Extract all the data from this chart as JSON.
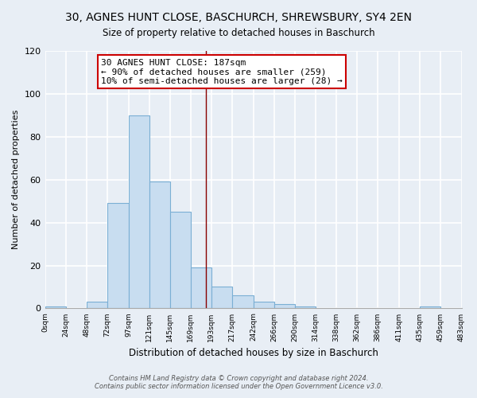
{
  "title": "30, AGNES HUNT CLOSE, BASCHURCH, SHREWSBURY, SY4 2EN",
  "subtitle": "Size of property relative to detached houses in Baschurch",
  "xlabel": "Distribution of detached houses by size in Baschurch",
  "ylabel": "Number of detached properties",
  "bar_color": "#c8ddf0",
  "bar_edge_color": "#7bafd4",
  "bin_edges": [
    0,
    24,
    48,
    72,
    97,
    121,
    145,
    169,
    193,
    217,
    242,
    266,
    290,
    314,
    338,
    362,
    386,
    411,
    435,
    459,
    483
  ],
  "counts": [
    1,
    0,
    3,
    49,
    90,
    59,
    45,
    19,
    10,
    6,
    3,
    2,
    1,
    0,
    0,
    0,
    0,
    0,
    1,
    0
  ],
  "tick_labels": [
    "0sqm",
    "24sqm",
    "48sqm",
    "72sqm",
    "97sqm",
    "121sqm",
    "145sqm",
    "169sqm",
    "193sqm",
    "217sqm",
    "242sqm",
    "266sqm",
    "290sqm",
    "314sqm",
    "338sqm",
    "362sqm",
    "386sqm",
    "411sqm",
    "435sqm",
    "459sqm",
    "483sqm"
  ],
  "property_line_x": 187,
  "property_line_color": "#880000",
  "annotation_text": "30 AGNES HUNT CLOSE: 187sqm\n← 90% of detached houses are smaller (259)\n10% of semi-detached houses are larger (28) →",
  "annotation_box_color": "#ffffff",
  "annotation_box_edgecolor": "#cc0000",
  "ylim": [
    0,
    120
  ],
  "yticks": [
    0,
    20,
    40,
    60,
    80,
    100,
    120
  ],
  "footnote1": "Contains HM Land Registry data © Crown copyright and database right 2024.",
  "footnote2": "Contains public sector information licensed under the Open Government Licence v3.0.",
  "background_color": "#e8eef5",
  "plot_bg_color": "#e8eef5",
  "grid_color": "#ffffff"
}
